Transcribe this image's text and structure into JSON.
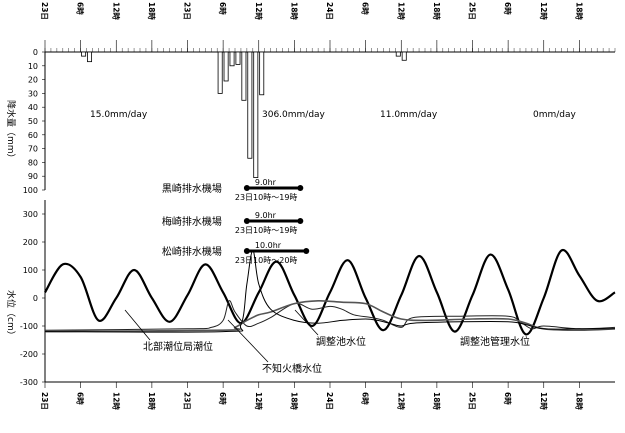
{
  "chart_data": [
    {
      "type": "bar",
      "title": "",
      "ylabel": "降水量（mm）",
      "ylim": [
        100,
        0
      ],
      "yticks": [
        "0",
        "10",
        "20",
        "30",
        "40",
        "50",
        "60",
        "70",
        "80",
        "90",
        "100"
      ],
      "time_axis_labels": [
        "23日",
        "6時",
        "12時",
        "18時",
        "23日",
        "6時",
        "12時",
        "18時",
        "24日",
        "6時",
        "12時",
        "18時",
        "25日",
        "6時",
        "12時",
        "18時"
      ],
      "x_start": "2日0時",
      "x_hours": 96,
      "bars": [
        {
          "hour": 6,
          "value": 3
        },
        {
          "hour": 7,
          "value": 7
        },
        {
          "hour": 29,
          "value": 30
        },
        {
          "hour": 30,
          "value": 21
        },
        {
          "hour": 31,
          "value": 10
        },
        {
          "hour": 32,
          "value": 9
        },
        {
          "hour": 33,
          "value": 35
        },
        {
          "hour": 34,
          "value": 77
        },
        {
          "hour": 35,
          "value": 91
        },
        {
          "hour": 36,
          "value": 31
        },
        {
          "hour": 59,
          "value": 3
        },
        {
          "hour": 60,
          "value": 6
        }
      ],
      "annotations": [
        "15.0mm/day",
        "306.0mm/day",
        "11.0mm/day",
        "0mm/day"
      ]
    },
    {
      "type": "line",
      "title": "",
      "ylabel": "水位（cm）",
      "ylim": [
        -300,
        300
      ],
      "yticks": [
        "300",
        "200",
        "100",
        "0",
        "-100",
        "-200",
        "-300"
      ],
      "time_axis_labels": [
        "23日",
        "6時",
        "12時",
        "18時",
        "23日",
        "6時",
        "12時",
        "18時",
        "24日",
        "6時",
        "12時",
        "18時",
        "25日",
        "6時",
        "12時",
        "18時"
      ],
      "x_start": "2日0時",
      "x_hours": 96,
      "series": [
        {
          "name": "北部潮位局潮位",
          "points": [
            [
              0,
              20
            ],
            [
              3,
              120
            ],
            [
              6,
              75
            ],
            [
              9,
              -80
            ],
            [
              12,
              0
            ],
            [
              15,
              100
            ],
            [
              18,
              0
            ],
            [
              21,
              -85
            ],
            [
              24,
              10
            ],
            [
              27,
              120
            ],
            [
              30,
              20
            ],
            [
              33,
              -90
            ],
            [
              36,
              20
            ],
            [
              39,
              130
            ],
            [
              42,
              10
            ],
            [
              45,
              -100
            ],
            [
              48,
              20
            ],
            [
              51,
              135
            ],
            [
              54,
              0
            ],
            [
              57,
              -115
            ],
            [
              60,
              10
            ],
            [
              63,
              150
            ],
            [
              66,
              20
            ],
            [
              69,
              -120
            ],
            [
              72,
              10
            ],
            [
              75,
              155
            ],
            [
              78,
              30
            ],
            [
              81,
              -130
            ],
            [
              84,
              0
            ],
            [
              87,
              170
            ],
            [
              90,
              80
            ],
            [
              93,
              -10
            ],
            [
              96,
              20
            ]
          ]
        },
        {
          "name": "不知火橋水位",
          "points": [
            [
              0,
              -115
            ],
            [
              24,
              -110
            ],
            [
              28,
              -105
            ],
            [
              30,
              -80
            ],
            [
              31,
              -10
            ],
            [
              32,
              -50
            ],
            [
              34,
              -100
            ],
            [
              36,
              -90
            ],
            [
              38,
              -70
            ],
            [
              42,
              -20
            ],
            [
              45,
              -40
            ],
            [
              48,
              -30
            ],
            [
              50,
              -40
            ],
            [
              52,
              -60
            ],
            [
              55,
              -70
            ],
            [
              57,
              -80
            ],
            [
              60,
              -105
            ],
            [
              62,
              -70
            ],
            [
              70,
              -65
            ],
            [
              78,
              -65
            ],
            [
              80,
              -85
            ],
            [
              82,
              -110
            ],
            [
              84,
              -100
            ],
            [
              90,
              -110
            ],
            [
              96,
              -105
            ]
          ]
        },
        {
          "name": "調整池水位",
          "points": [
            [
              0,
              -120
            ],
            [
              30,
              -115
            ],
            [
              32,
              -105
            ],
            [
              34,
              -80
            ],
            [
              36,
              -60
            ],
            [
              38,
              -50
            ],
            [
              42,
              -20
            ],
            [
              46,
              -10
            ],
            [
              50,
              -15
            ],
            [
              54,
              -20
            ],
            [
              57,
              -50
            ],
            [
              60,
              -75
            ],
            [
              64,
              -80
            ],
            [
              72,
              -75
            ],
            [
              78,
              -75
            ],
            [
              81,
              -90
            ],
            [
              84,
              -110
            ],
            [
              90,
              -115
            ],
            [
              96,
              -110
            ]
          ]
        },
        {
          "name": "調整池管理水位",
          "points": [
            [
              0,
              -120
            ],
            [
              30,
              -120
            ],
            [
              33,
              -95
            ],
            [
              34,
              50
            ],
            [
              35,
              170
            ],
            [
              36,
              50
            ],
            [
              38,
              -40
            ],
            [
              42,
              -80
            ],
            [
              46,
              -90
            ],
            [
              50,
              -80
            ],
            [
              54,
              -75
            ],
            [
              56,
              -80
            ],
            [
              58,
              -90
            ],
            [
              60,
              -100
            ],
            [
              62,
              -90
            ],
            [
              70,
              -85
            ],
            [
              78,
              -85
            ],
            [
              81,
              -95
            ],
            [
              84,
              -110
            ],
            [
              90,
              -110
            ],
            [
              96,
              -110
            ]
          ]
        }
      ],
      "pump_stations": [
        {
          "name": "黒崎排水機場",
          "duration": "9.0hr",
          "period": "23日10時〜19時",
          "start_hour": 34,
          "end_hour": 43
        },
        {
          "name": "梅崎排水機場",
          "duration": "9.0hr",
          "period": "23日10時〜19時",
          "start_hour": 34,
          "end_hour": 43
        },
        {
          "name": "松崎排水機場",
          "duration": "10.0hr",
          "period": "23日10時〜20時",
          "start_hour": 34,
          "end_hour": 44
        }
      ],
      "legend": [
        "北部潮位局潮位",
        "不知火橋水位",
        "調整池水位",
        "調整池管理水位"
      ]
    }
  ]
}
